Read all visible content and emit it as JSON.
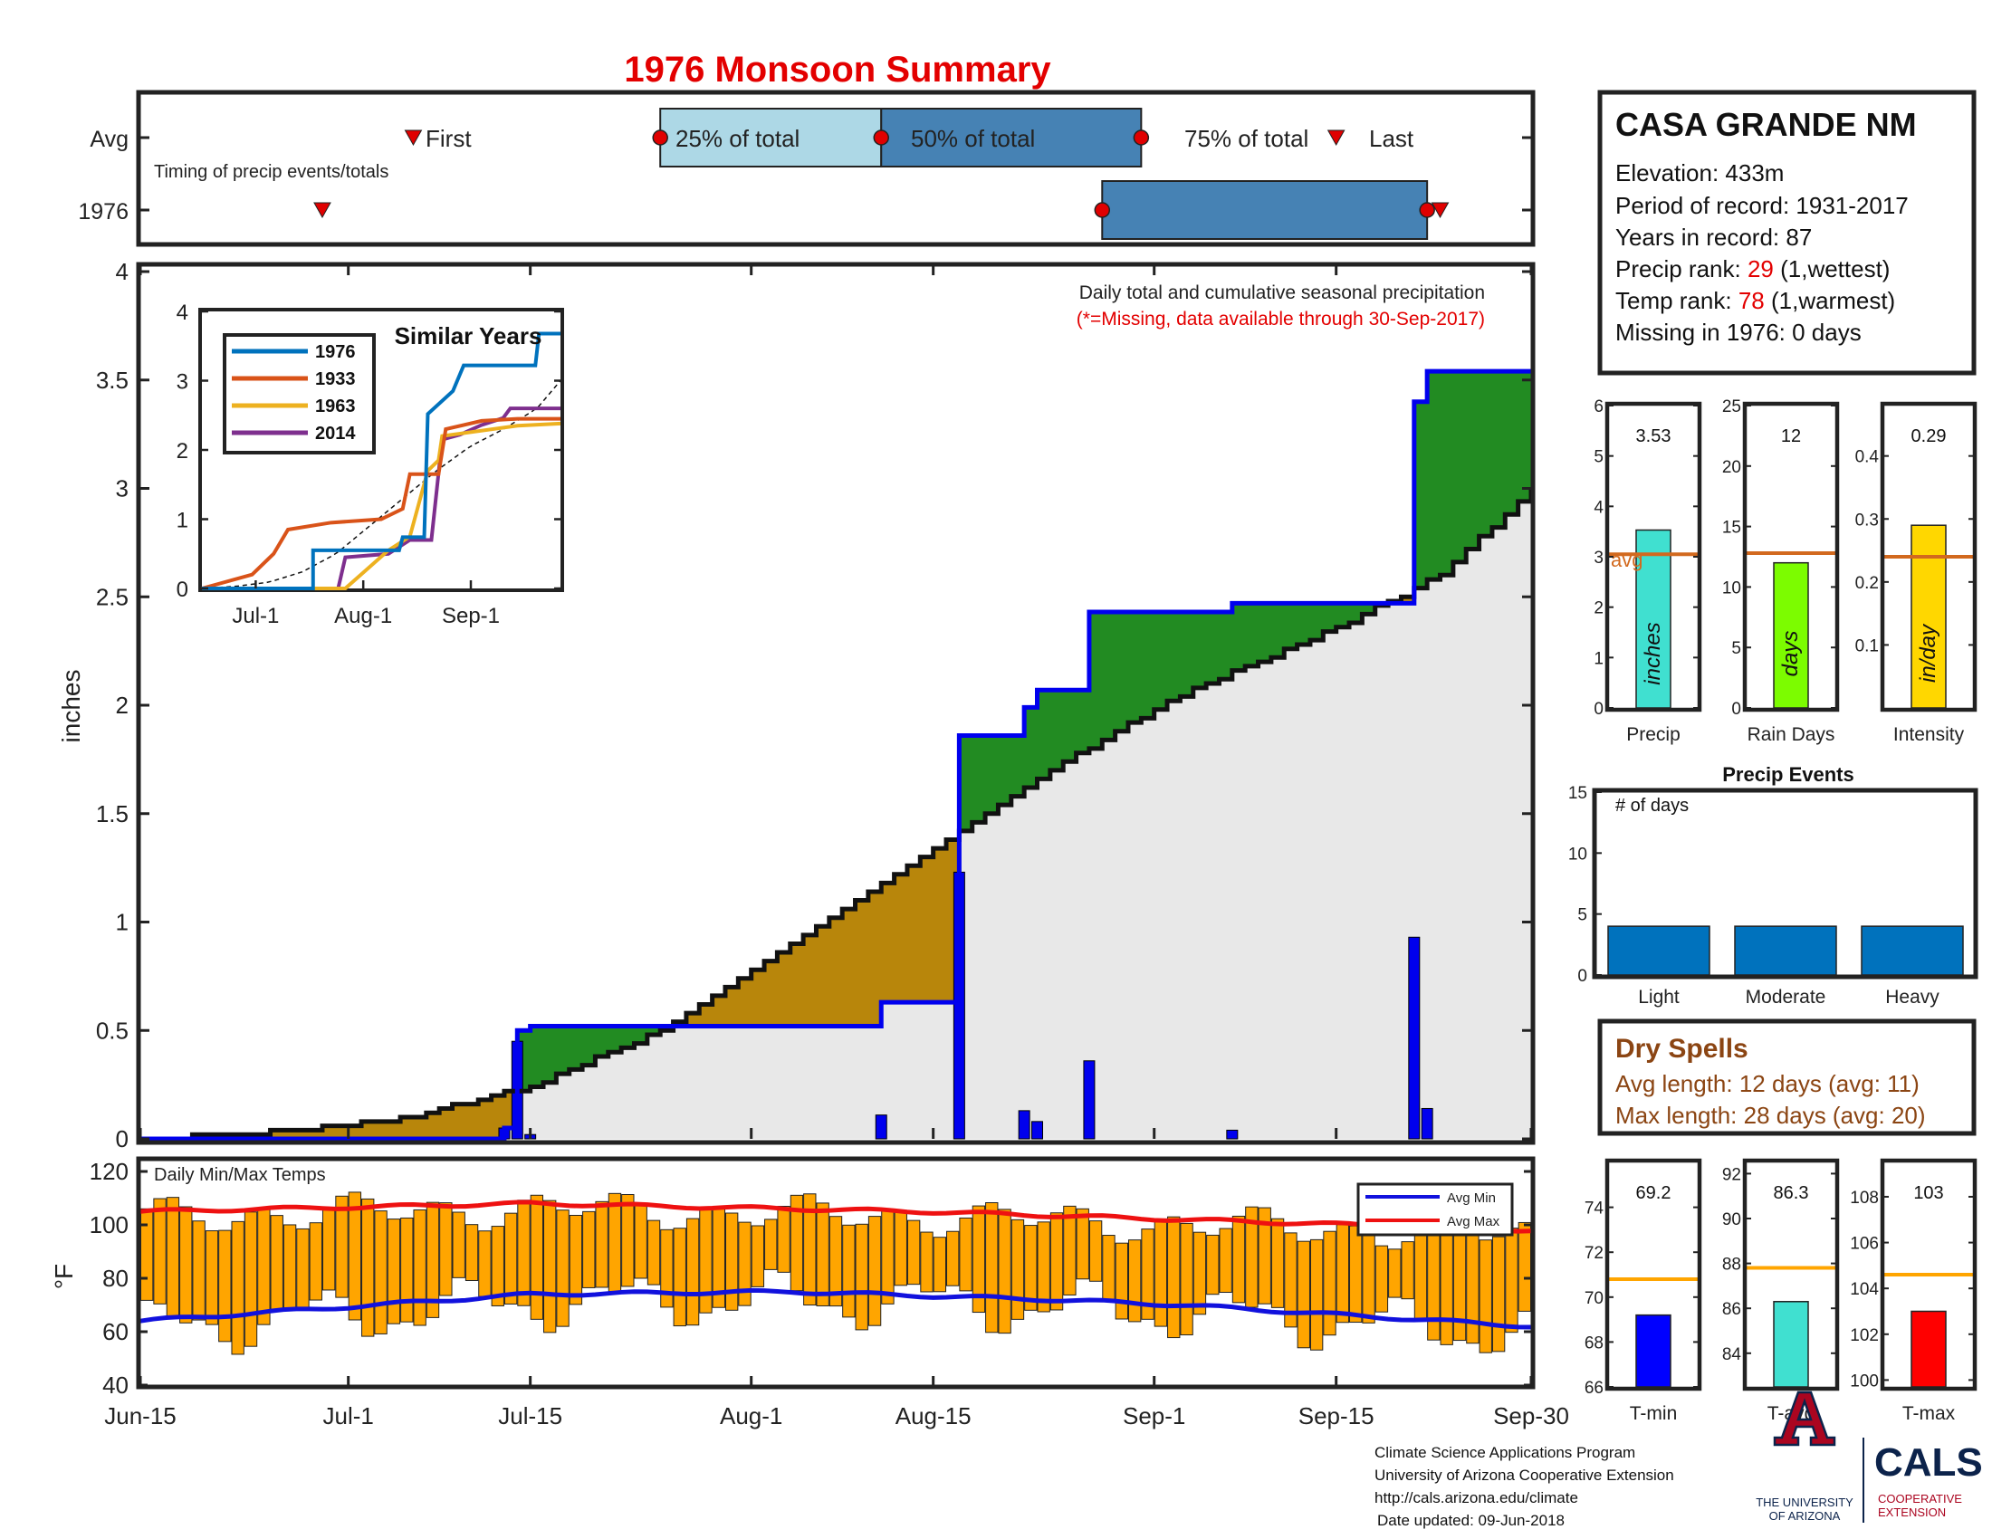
{
  "title": "1976 Monsoon Summary",
  "colors": {
    "title": "#e30000",
    "frame": "#222222",
    "seasonal_fill": "#b8860b",
    "year_fill": "#e8e8e8",
    "surplus_fill": "#228b22",
    "daily_bar": "#0000ee",
    "year_line": "#0000ee",
    "temp_bar": "#ffa500",
    "avg_max": "#ee1111",
    "avg_min": "#1111dd",
    "timing_light": "#add8e6",
    "timing_dark": "#4682b4",
    "marker": "#e00000",
    "stat_avg_line": "#d2691e",
    "precip_bar": "#40e0d0",
    "raindays_bar": "#7cfc00",
    "intensity_bar": "#ffd700",
    "events_bar": "#0072bd",
    "tmin_bar": "#0000ff",
    "tavg_bar": "#40e0d0",
    "tmax_bar": "#ff0000",
    "temp_avg_line": "#ffa500",
    "dry_text": "#8b4513"
  },
  "timing": {
    "row_avg": "Avg",
    "row_year": "1976",
    "caption": "Timing of precip events/totals",
    "first_label": "First",
    "q25_label": "25% of total",
    "q50_label": "50% of total",
    "q75_label": "75% of total",
    "last_label": "Last",
    "avg": {
      "first": 21,
      "q25": 40,
      "q50": 57,
      "q75": 77,
      "last": 92
    },
    "year": {
      "first": 14,
      "q50": 74,
      "q75": 99,
      "last": 100
    }
  },
  "station": {
    "name": "CASA GRANDE NM",
    "elevation": "Elevation: 433m",
    "period": "Period of record: 1931-2017",
    "years": "Years in record: 87",
    "precip_rank_pre": "Precip rank: ",
    "precip_rank_val": "29",
    "precip_rank_post": " (1,wettest)",
    "temp_rank_pre": "Temp rank: ",
    "temp_rank_val": "78",
    "temp_rank_post": " (1,warmest)",
    "missing": "Missing in 1976: 0 days"
  },
  "main_chart": {
    "ylabel": "inches",
    "yticks": [
      "0",
      "0.5",
      "1",
      "1.5",
      "2",
      "2.5",
      "3",
      "3.5",
      "4"
    ],
    "note1": "Daily total and cumulative seasonal precipitation",
    "note2": "(*=Missing, data available through 30-Sep-2017)",
    "xticks": [
      "Jun-15",
      "Jul-1",
      "Jul-15",
      "Aug-1",
      "Aug-15",
      "Sep-1",
      "Sep-15",
      "Sep-30"
    ]
  },
  "inset": {
    "title": "Similar Years",
    "yticks": [
      "0",
      "1",
      "2",
      "3",
      "4"
    ],
    "xticks": [
      "Jul-1",
      "Aug-1",
      "Sep-1"
    ],
    "legend": [
      {
        "name": "1976",
        "color": "#0072bd"
      },
      {
        "name": "1933",
        "color": "#d95319"
      },
      {
        "name": "1963",
        "color": "#edb120"
      },
      {
        "name": "2014",
        "color": "#7e2f8e"
      }
    ]
  },
  "temp_chart": {
    "title": "Daily Min/Max Temps",
    "ylabel": "°F",
    "yticks": [
      "40",
      "60",
      "80",
      "100",
      "120"
    ],
    "legend_min": "Avg Min",
    "legend_max": "Avg Max"
  },
  "stats": {
    "precip": {
      "label": "Precip",
      "value_text": "3.53",
      "unit": "inches",
      "yticks": [
        "0",
        "1",
        "2",
        "3",
        "4",
        "5",
        "6"
      ],
      "avg_text": "avg"
    },
    "raindays": {
      "label": "Rain Days",
      "value_text": "12",
      "unit": "days",
      "yticks": [
        "0",
        "5",
        "10",
        "15",
        "20",
        "25"
      ]
    },
    "intensity": {
      "label": "Intensity",
      "value_text": "0.29",
      "unit": "in/day",
      "yticks": [
        "0.1",
        "0.2",
        "0.3",
        "0.4"
      ]
    }
  },
  "events": {
    "title": "Precip Events",
    "ylabel": "# of days",
    "yticks": [
      "0",
      "5",
      "10",
      "15"
    ],
    "categories": [
      "Light",
      "Moderate",
      "Heavy"
    ]
  },
  "dry_spells": {
    "title": "Dry Spells",
    "avg_line": "Avg length: 12 days (avg: 11)",
    "max_line": "Max length: 28 days (avg: 20)"
  },
  "temp_stats": {
    "tmin": {
      "label": "T-min",
      "value_text": "69.2",
      "yticks": [
        "66",
        "68",
        "70",
        "72",
        "74"
      ]
    },
    "tavg": {
      "label": "T-avg",
      "value_text": "86.3",
      "yticks": [
        "84",
        "86",
        "88",
        "90",
        "92"
      ]
    },
    "tmax": {
      "label": "T-max",
      "value_text": "103",
      "yticks": [
        "100",
        "102",
        "104",
        "106",
        "108"
      ]
    }
  },
  "footer": {
    "line1": "Climate Science Applications Program",
    "line2": "University of Arizona Cooperative Extension",
    "line3": "http://cals.arizona.edu/climate",
    "line4": "Date updated: 09-Jun-2018",
    "ua_line1": "THE UNIVERSITY",
    "ua_line2": "OF ARIZONA",
    "cals": "CALS",
    "cals_sub1": "COOPERATIVE",
    "cals_sub2": "EXTENSION"
  },
  "chart_data": [
    {
      "type": "area",
      "title": "Daily total and cumulative seasonal precipitation",
      "ylabel": "inches",
      "ylim": [
        0,
        4
      ],
      "xlim_days": [
        "Jun-15",
        "Sep-30"
      ],
      "series": [
        {
          "name": "Avg",
          "cumulative_points": [
            [
              0,
              0
            ],
            [
              10,
              0.03
            ],
            [
              20,
              0.09
            ],
            [
              30,
              0.24
            ],
            [
              40,
              0.5
            ],
            [
              50,
              0.9
            ],
            [
              60,
              1.3
            ],
            [
              70,
              1.7
            ],
            [
              80,
              2.05
            ],
            [
              90,
              2.3
            ],
            [
              100,
              2.6
            ],
            [
              107,
              3.0
            ]
          ]
        },
        {
          "name": "1976",
          "daily": [
            [
              28,
              0.05
            ],
            [
              29,
              0.45
            ],
            [
              30,
              0.02
            ],
            [
              57,
              0.11
            ],
            [
              63,
              1.23
            ],
            [
              68,
              0.13
            ],
            [
              69,
              0.08
            ],
            [
              73,
              0.36
            ],
            [
              84,
              0.04
            ],
            [
              98,
              0.93
            ],
            [
              99,
              0.14
            ]
          ]
        }
      ]
    },
    {
      "type": "line",
      "title": "Similar Years",
      "ylim": [
        0,
        4
      ],
      "series": [
        {
          "name": "1976",
          "points": [
            [
              0,
              0
            ],
            [
              31,
              0
            ],
            [
              31,
              0.55
            ],
            [
              55,
              0.55
            ],
            [
              56,
              0.74
            ],
            [
              62,
              0.74
            ],
            [
              63,
              2.52
            ],
            [
              70,
              2.85
            ],
            [
              73,
              3.22
            ],
            [
              85,
              3.22
            ],
            [
              93,
              3.22
            ],
            [
              94,
              3.68
            ],
            [
              100,
              3.68
            ]
          ]
        },
        {
          "name": "1933",
          "points": [
            [
              0,
              0
            ],
            [
              14,
              0.2
            ],
            [
              20,
              0.5
            ],
            [
              24,
              0.85
            ],
            [
              36,
              0.95
            ],
            [
              50,
              1.0
            ],
            [
              56,
              1.15
            ],
            [
              58,
              1.65
            ],
            [
              66,
              1.65
            ],
            [
              68,
              2.3
            ],
            [
              78,
              2.42
            ],
            [
              88,
              2.45
            ],
            [
              100,
              2.45
            ]
          ]
        },
        {
          "name": "1963",
          "points": [
            [
              0,
              0
            ],
            [
              40,
              0
            ],
            [
              52,
              0.55
            ],
            [
              58,
              0.75
            ],
            [
              63,
              1.7
            ],
            [
              66,
              1.85
            ],
            [
              67,
              2.2
            ],
            [
              88,
              2.35
            ],
            [
              100,
              2.38
            ]
          ]
        },
        {
          "name": "2014",
          "points": [
            [
              0,
              0
            ],
            [
              38,
              0
            ],
            [
              40,
              0.45
            ],
            [
              52,
              0.5
            ],
            [
              58,
              0.7
            ],
            [
              64,
              0.7
            ],
            [
              67,
              2.15
            ],
            [
              72,
              2.22
            ],
            [
              78,
              2.36
            ],
            [
              84,
              2.46
            ],
            [
              86,
              2.6
            ],
            [
              100,
              2.6
            ]
          ]
        }
      ]
    },
    {
      "type": "bar",
      "title": "Daily Min/Max Temps",
      "ylabel": "°F",
      "ylim": [
        40,
        120
      ],
      "series": [
        {
          "name": "Avg Max",
          "points": [
            [
              0,
              105
            ],
            [
              30,
              108
            ],
            [
              60,
              105
            ],
            [
              80,
              102
            ],
            [
              107,
              98
            ]
          ]
        },
        {
          "name": "Avg Min",
          "points": [
            [
              0,
              64
            ],
            [
              30,
              74
            ],
            [
              50,
              75
            ],
            [
              70,
              72
            ],
            [
              80,
              70
            ],
            [
              107,
              62
            ]
          ]
        }
      ]
    },
    {
      "type": "bar",
      "categories": [
        "Precip",
        "Rain Days",
        "Intensity"
      ],
      "values": [
        3.53,
        12,
        0.29
      ],
      "averages": [
        3.05,
        12.8,
        0.24
      ]
    },
    {
      "type": "bar",
      "title": "Precip Events",
      "categories": [
        "Light",
        "Moderate",
        "Heavy"
      ],
      "values": [
        4,
        4,
        4
      ],
      "ylim": [
        0,
        15
      ]
    },
    {
      "type": "bar",
      "categories": [
        "T-min",
        "T-avg",
        "T-max"
      ],
      "values": [
        69.2,
        86.3,
        103
      ],
      "averages": [
        70.8,
        87.8,
        104.6
      ]
    }
  ]
}
